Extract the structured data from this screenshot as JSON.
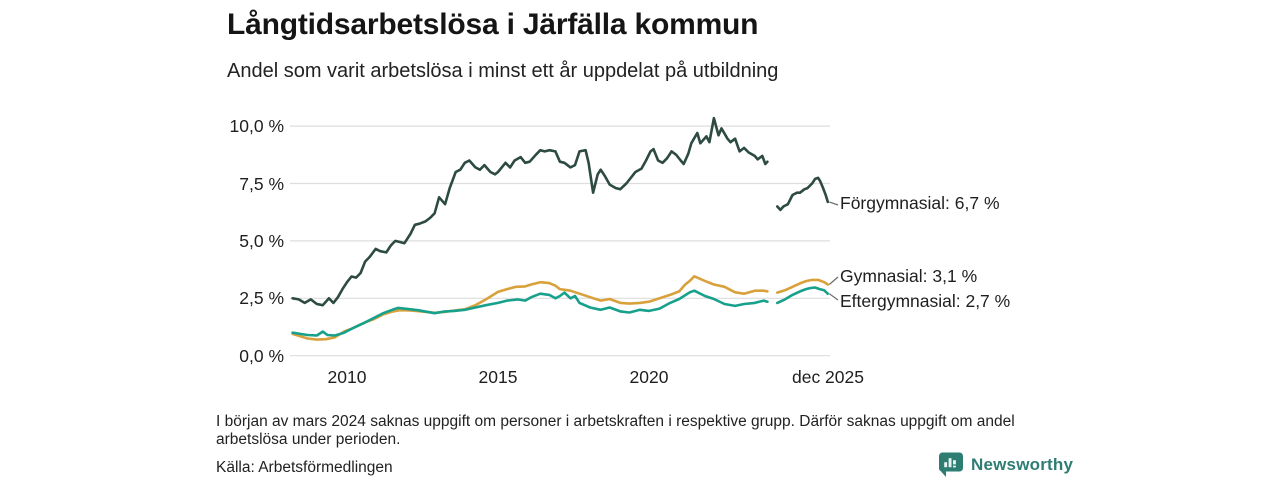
{
  "header": {
    "title": "Långtidsarbetslösa i Järfälla kommun",
    "subtitle": "Andel som varit arbetslösa i minst ett år uppdelat på utbildning"
  },
  "chart_data": {
    "type": "line",
    "title": "Långtidsarbetslösa i Järfälla kommun",
    "subtitle": "Andel som varit arbetslösa i minst ett år uppdelat på utbildning",
    "x_axis": {
      "unit": "year",
      "range": [
        2008.2,
        2025.92
      ],
      "tick_labels": [
        "2010",
        "2015",
        "2020",
        "dec 2025"
      ],
      "tick_values": [
        2010,
        2015,
        2020,
        2025.92
      ]
    },
    "y_axis": {
      "unit": "%",
      "range": [
        0,
        10
      ],
      "grid": true,
      "tick_labels": [
        "10,0 %",
        "7,5 %",
        "5,0 %",
        "2,5 %",
        "0,0 %"
      ],
      "tick_values": [
        10,
        7.5,
        5,
        2.5,
        0
      ]
    },
    "legend_position": "right-of-line-ends",
    "data_gap": "early 2024 (mars 2024) — missing data, lines broken",
    "series": [
      {
        "name": "Förgymnasial",
        "end_label": "Förgymnasial: 6,7 %",
        "last_value": 6.7,
        "color": "#2d4a43",
        "points": [
          [
            2008.2,
            2.5
          ],
          [
            2008.4,
            2.45
          ],
          [
            2008.6,
            2.3
          ],
          [
            2008.8,
            2.45
          ],
          [
            2009.0,
            2.25
          ],
          [
            2009.2,
            2.2
          ],
          [
            2009.4,
            2.5
          ],
          [
            2009.55,
            2.3
          ],
          [
            2009.7,
            2.55
          ],
          [
            2009.85,
            2.9
          ],
          [
            2010.0,
            3.2
          ],
          [
            2010.15,
            3.45
          ],
          [
            2010.3,
            3.4
          ],
          [
            2010.45,
            3.6
          ],
          [
            2010.6,
            4.1
          ],
          [
            2010.75,
            4.3
          ],
          [
            2010.95,
            4.65
          ],
          [
            2011.1,
            4.55
          ],
          [
            2011.3,
            4.5
          ],
          [
            2011.45,
            4.8
          ],
          [
            2011.6,
            5.0
          ],
          [
            2011.75,
            4.95
          ],
          [
            2011.9,
            4.9
          ],
          [
            2012.1,
            5.3
          ],
          [
            2012.25,
            5.7
          ],
          [
            2012.4,
            5.75
          ],
          [
            2012.6,
            5.85
          ],
          [
            2012.75,
            6.0
          ],
          [
            2012.9,
            6.2
          ],
          [
            2013.05,
            6.9
          ],
          [
            2013.25,
            6.6
          ],
          [
            2013.4,
            7.3
          ],
          [
            2013.6,
            8.0
          ],
          [
            2013.75,
            8.1
          ],
          [
            2013.9,
            8.4
          ],
          [
            2014.05,
            8.5
          ],
          [
            2014.25,
            8.2
          ],
          [
            2014.4,
            8.1
          ],
          [
            2014.55,
            8.3
          ],
          [
            2014.75,
            8.0
          ],
          [
            2014.9,
            7.9
          ],
          [
            2015.0,
            8.0
          ],
          [
            2015.25,
            8.4
          ],
          [
            2015.4,
            8.2
          ],
          [
            2015.55,
            8.5
          ],
          [
            2015.75,
            8.65
          ],
          [
            2015.9,
            8.4
          ],
          [
            2016.05,
            8.45
          ],
          [
            2016.25,
            8.75
          ],
          [
            2016.4,
            8.95
          ],
          [
            2016.55,
            8.9
          ],
          [
            2016.7,
            8.95
          ],
          [
            2016.9,
            8.9
          ],
          [
            2017.05,
            8.45
          ],
          [
            2017.2,
            8.4
          ],
          [
            2017.4,
            8.2
          ],
          [
            2017.55,
            8.3
          ],
          [
            2017.7,
            8.9
          ],
          [
            2017.9,
            8.95
          ],
          [
            2018.0,
            8.4
          ],
          [
            2018.15,
            7.1
          ],
          [
            2018.3,
            7.9
          ],
          [
            2018.4,
            8.1
          ],
          [
            2018.55,
            7.8
          ],
          [
            2018.7,
            7.45
          ],
          [
            2018.9,
            7.3
          ],
          [
            2019.05,
            7.25
          ],
          [
            2019.25,
            7.5
          ],
          [
            2019.55,
            8.0
          ],
          [
            2019.75,
            8.15
          ],
          [
            2019.9,
            8.5
          ],
          [
            2020.05,
            8.9
          ],
          [
            2020.15,
            9.0
          ],
          [
            2020.3,
            8.5
          ],
          [
            2020.45,
            8.4
          ],
          [
            2020.6,
            8.6
          ],
          [
            2020.75,
            8.9
          ],
          [
            2020.9,
            8.75
          ],
          [
            2021.05,
            8.5
          ],
          [
            2021.15,
            8.35
          ],
          [
            2021.3,
            8.8
          ],
          [
            2021.4,
            9.25
          ],
          [
            2021.6,
            9.7
          ],
          [
            2021.7,
            9.25
          ],
          [
            2021.9,
            9.55
          ],
          [
            2022.0,
            9.3
          ],
          [
            2022.15,
            10.35
          ],
          [
            2022.3,
            9.6
          ],
          [
            2022.4,
            9.9
          ],
          [
            2022.6,
            9.45
          ],
          [
            2022.7,
            9.3
          ],
          [
            2022.85,
            9.45
          ],
          [
            2023.0,
            8.9
          ],
          [
            2023.15,
            9.05
          ],
          [
            2023.3,
            8.85
          ],
          [
            2023.5,
            8.7
          ],
          [
            2023.6,
            8.55
          ],
          [
            2023.75,
            8.7
          ],
          [
            2023.85,
            8.35
          ],
          [
            2023.92,
            8.45
          ],
          null,
          [
            2024.25,
            6.5
          ],
          [
            2024.35,
            6.35
          ],
          [
            2024.45,
            6.5
          ],
          [
            2024.6,
            6.6
          ],
          [
            2024.75,
            7.0
          ],
          [
            2024.9,
            7.1
          ],
          [
            2025.0,
            7.1
          ],
          [
            2025.15,
            7.25
          ],
          [
            2025.25,
            7.3
          ],
          [
            2025.4,
            7.5
          ],
          [
            2025.5,
            7.7
          ],
          [
            2025.6,
            7.75
          ],
          [
            2025.67,
            7.6
          ],
          [
            2025.75,
            7.35
          ],
          [
            2025.85,
            7.0
          ],
          [
            2025.92,
            6.7
          ]
        ]
      },
      {
        "name": "Gymnasial",
        "end_label": "Gymnasial: 3,1 %",
        "last_value": 3.1,
        "color": "#d8a13c",
        "points": [
          [
            2008.2,
            0.95
          ],
          [
            2008.45,
            0.85
          ],
          [
            2008.7,
            0.75
          ],
          [
            2009.0,
            0.7
          ],
          [
            2009.3,
            0.72
          ],
          [
            2009.6,
            0.8
          ],
          [
            2009.9,
            1.05
          ],
          [
            2010.2,
            1.2
          ],
          [
            2010.6,
            1.45
          ],
          [
            2010.9,
            1.6
          ],
          [
            2011.2,
            1.8
          ],
          [
            2011.5,
            1.92
          ],
          [
            2011.75,
            1.98
          ],
          [
            2012.1,
            1.97
          ],
          [
            2012.5,
            1.92
          ],
          [
            2012.9,
            1.87
          ],
          [
            2013.2,
            1.9
          ],
          [
            2013.55,
            1.97
          ],
          [
            2013.9,
            2.02
          ],
          [
            2014.25,
            2.2
          ],
          [
            2014.6,
            2.45
          ],
          [
            2015.0,
            2.78
          ],
          [
            2015.3,
            2.9
          ],
          [
            2015.6,
            3.0
          ],
          [
            2015.9,
            3.02
          ],
          [
            2016.1,
            3.1
          ],
          [
            2016.4,
            3.2
          ],
          [
            2016.7,
            3.16
          ],
          [
            2016.9,
            3.05
          ],
          [
            2017.05,
            2.9
          ],
          [
            2017.4,
            2.83
          ],
          [
            2017.7,
            2.7
          ],
          [
            2018.05,
            2.55
          ],
          [
            2018.4,
            2.4
          ],
          [
            2018.7,
            2.47
          ],
          [
            2019.05,
            2.3
          ],
          [
            2019.35,
            2.27
          ],
          [
            2019.7,
            2.3
          ],
          [
            2020.0,
            2.35
          ],
          [
            2020.35,
            2.5
          ],
          [
            2020.7,
            2.65
          ],
          [
            2021.0,
            2.8
          ],
          [
            2021.2,
            3.1
          ],
          [
            2021.35,
            3.26
          ],
          [
            2021.5,
            3.46
          ],
          [
            2021.85,
            3.26
          ],
          [
            2022.15,
            3.1
          ],
          [
            2022.5,
            3.0
          ],
          [
            2022.85,
            2.76
          ],
          [
            2023.15,
            2.7
          ],
          [
            2023.5,
            2.83
          ],
          [
            2023.8,
            2.83
          ],
          [
            2023.92,
            2.8
          ],
          null,
          [
            2024.25,
            2.75
          ],
          [
            2024.5,
            2.85
          ],
          [
            2024.75,
            3.0
          ],
          [
            2025.0,
            3.15
          ],
          [
            2025.2,
            3.25
          ],
          [
            2025.4,
            3.3
          ],
          [
            2025.6,
            3.3
          ],
          [
            2025.8,
            3.2
          ],
          [
            2025.92,
            3.1
          ]
        ]
      },
      {
        "name": "Eftergymnasial",
        "end_label": "Eftergymnasial: 2,7 %",
        "last_value": 2.7,
        "color": "#17a08b",
        "points": [
          [
            2008.2,
            1.0
          ],
          [
            2008.45,
            0.95
          ],
          [
            2008.7,
            0.9
          ],
          [
            2009.0,
            0.88
          ],
          [
            2009.2,
            1.05
          ],
          [
            2009.35,
            0.9
          ],
          [
            2009.6,
            0.88
          ],
          [
            2009.9,
            1.0
          ],
          [
            2010.2,
            1.2
          ],
          [
            2010.6,
            1.45
          ],
          [
            2010.9,
            1.65
          ],
          [
            2011.2,
            1.85
          ],
          [
            2011.5,
            2.0
          ],
          [
            2011.7,
            2.08
          ],
          [
            2012.0,
            2.04
          ],
          [
            2012.35,
            1.98
          ],
          [
            2012.9,
            1.85
          ],
          [
            2013.2,
            1.92
          ],
          [
            2013.55,
            1.95
          ],
          [
            2013.9,
            2.0
          ],
          [
            2014.25,
            2.1
          ],
          [
            2014.6,
            2.2
          ],
          [
            2015.0,
            2.3
          ],
          [
            2015.3,
            2.4
          ],
          [
            2015.65,
            2.45
          ],
          [
            2015.9,
            2.4
          ],
          [
            2016.1,
            2.55
          ],
          [
            2016.4,
            2.7
          ],
          [
            2016.7,
            2.65
          ],
          [
            2016.9,
            2.5
          ],
          [
            2017.05,
            2.6
          ],
          [
            2017.2,
            2.75
          ],
          [
            2017.4,
            2.5
          ],
          [
            2017.55,
            2.6
          ],
          [
            2017.7,
            2.3
          ],
          [
            2018.05,
            2.1
          ],
          [
            2018.4,
            2.0
          ],
          [
            2018.7,
            2.1
          ],
          [
            2019.05,
            1.93
          ],
          [
            2019.35,
            1.88
          ],
          [
            2019.7,
            2.0
          ],
          [
            2020.0,
            1.95
          ],
          [
            2020.35,
            2.05
          ],
          [
            2020.7,
            2.3
          ],
          [
            2021.0,
            2.47
          ],
          [
            2021.35,
            2.76
          ],
          [
            2021.5,
            2.83
          ],
          [
            2021.85,
            2.6
          ],
          [
            2022.15,
            2.47
          ],
          [
            2022.5,
            2.25
          ],
          [
            2022.85,
            2.17
          ],
          [
            2023.15,
            2.25
          ],
          [
            2023.5,
            2.3
          ],
          [
            2023.8,
            2.4
          ],
          [
            2023.92,
            2.35
          ],
          null,
          [
            2024.25,
            2.3
          ],
          [
            2024.5,
            2.45
          ],
          [
            2024.75,
            2.65
          ],
          [
            2025.0,
            2.8
          ],
          [
            2025.2,
            2.9
          ],
          [
            2025.35,
            2.95
          ],
          [
            2025.5,
            2.97
          ],
          [
            2025.65,
            2.9
          ],
          [
            2025.8,
            2.85
          ],
          [
            2025.92,
            2.7
          ]
        ]
      }
    ]
  },
  "footer": {
    "note": "I början av mars 2024 saknas uppgift om personer i arbetskraften i respektive grupp. Därför saknas uppgift om andel arbetslösa under perioden.",
    "source": "Källa: Arbetsförmedlingen",
    "brand": "Newsworthy"
  },
  "colors": {
    "background": "#ffffff",
    "grid": "#dddddd",
    "text": "#1f1f1f",
    "brand": "#2e7d72",
    "series_forgymnasial": "#2d4a43",
    "series_gymnasial": "#d8a13c",
    "series_eftergymnasial": "#17a08b"
  }
}
